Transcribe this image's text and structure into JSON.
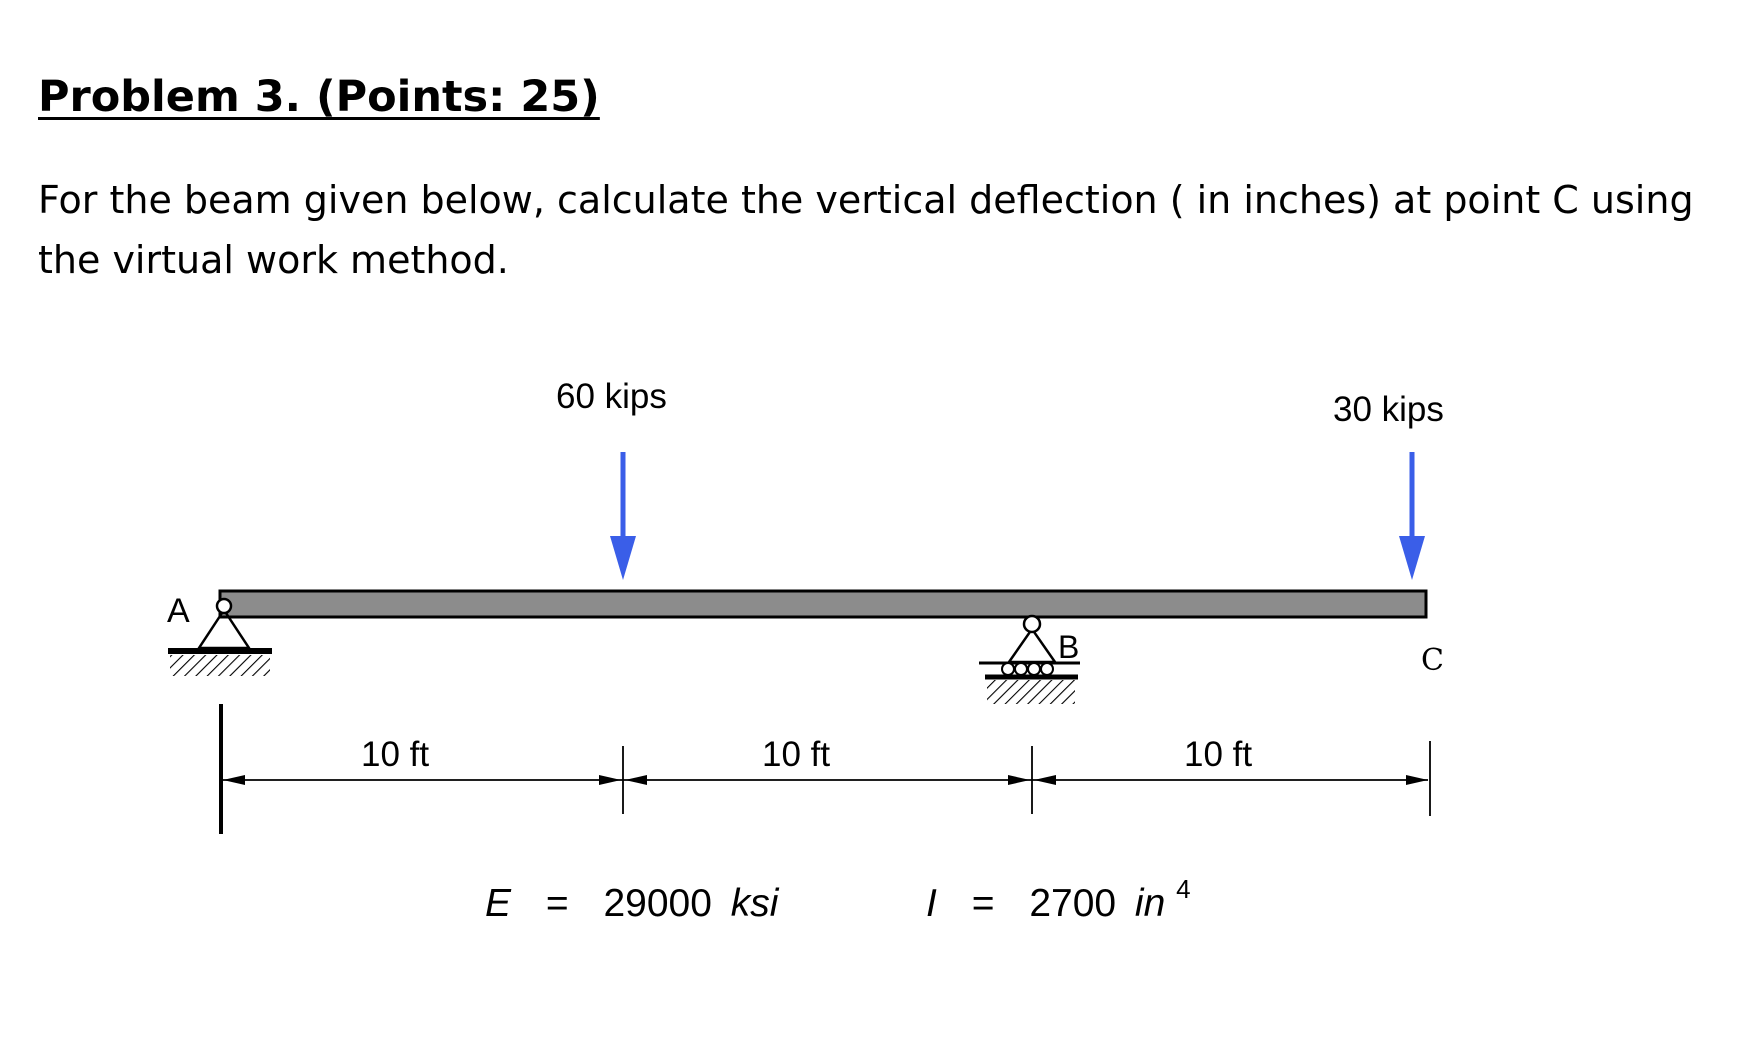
{
  "problem": {
    "title": "Problem 3.  (Points: 25)",
    "statement": "For the beam given below, calculate the vertical deflection ( in inches) at point C using the virtual work method."
  },
  "beam": {
    "points": {
      "a": "A",
      "b": "B",
      "c": "C"
    },
    "loads": [
      {
        "label": "60 kips"
      },
      {
        "label": "30 kips"
      }
    ],
    "spans": [
      "10 ft",
      "10 ft",
      "10 ft"
    ],
    "properties": {
      "e_symbol": "E",
      "e_equals": "=",
      "e_value": "29000",
      "e_unit": "ksi",
      "i_symbol": "I",
      "i_equals": "=",
      "i_value": "2700",
      "i_unit": "in",
      "i_exponent": "4"
    },
    "colors": {
      "beam_fill": "#8c8c8c",
      "arrow": "#3a5ee8"
    }
  }
}
